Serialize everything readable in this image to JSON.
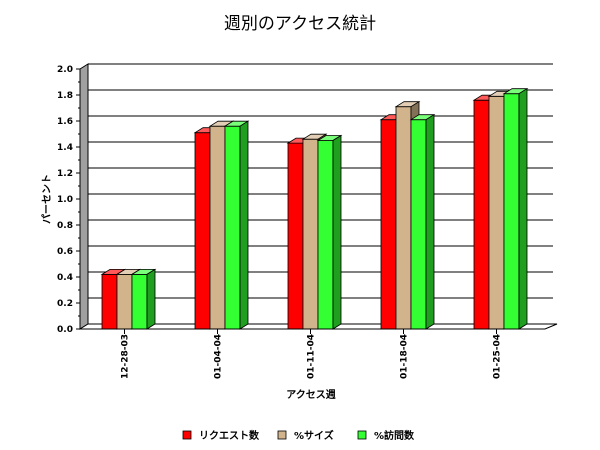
{
  "chart_data": {
    "type": "bar",
    "title": "週別のアクセス統計",
    "xlabel": "アクセス週",
    "ylabel": "パーセント",
    "categories": [
      "12-28-03",
      "01-04-04",
      "01-11-04",
      "01-18-04",
      "01-25-04"
    ],
    "series": [
      {
        "name": "リクエスト数",
        "color": "#ff0000",
        "values": [
          0.42,
          1.51,
          1.43,
          1.61,
          1.76
        ]
      },
      {
        "name": "%サイズ",
        "color": "#d2b48c",
        "values": [
          0.42,
          1.56,
          1.46,
          1.71,
          1.79
        ]
      },
      {
        "name": "%訪問数",
        "color": "#33ff33",
        "values": [
          0.42,
          1.56,
          1.45,
          1.61,
          1.81
        ]
      }
    ],
    "ylim": [
      0,
      2.0
    ],
    "yticks": [
      "0.0",
      "0.2",
      "0.4",
      "0.6",
      "0.8",
      "1.0",
      "1.2",
      "1.4",
      "1.6",
      "1.8",
      "2.0"
    ],
    "grid": true,
    "legend_position": "bottom"
  }
}
